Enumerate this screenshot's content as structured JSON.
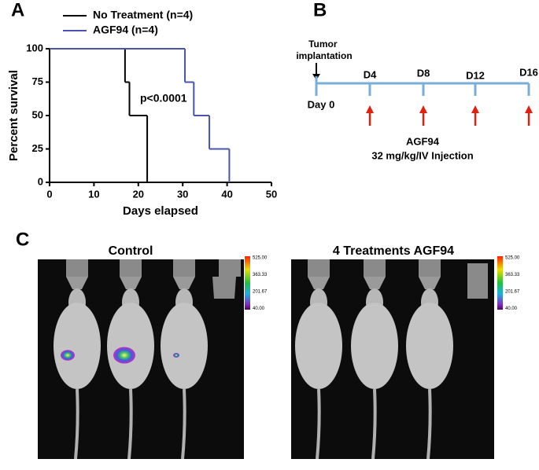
{
  "panels": {
    "a": "A",
    "b": "B",
    "c": "C"
  },
  "chart_data": {
    "type": "step",
    "x_label": "Days elapsed",
    "y_label": "Percent survival",
    "annotation": "p<0.0001",
    "xlim": [
      0,
      50
    ],
    "xticks": [
      0,
      10,
      20,
      30,
      40,
      50
    ],
    "ylim": [
      0,
      100
    ],
    "yticks": [
      0,
      25,
      50,
      75,
      100
    ],
    "grid": false,
    "legend": "top",
    "series": [
      {
        "name": "No Treatment (n=4)",
        "color": "#000000",
        "x": [
          0,
          17,
          18,
          22
        ],
        "values": [
          100,
          75,
          50,
          0
        ]
      },
      {
        "name": "AGF94 (n=4)",
        "color": "#4a54b0",
        "x": [
          0,
          30.5,
          32.5,
          36,
          40.5
        ],
        "values": [
          100,
          75,
          50,
          25,
          0
        ]
      }
    ]
  },
  "timeline": {
    "start_label": "Tumor implantation",
    "day0": "Day 0",
    "days": [
      "D4",
      "D8",
      "D12",
      "D16"
    ],
    "drug": "AGF94",
    "dose": "32 mg/kg/IV Injection"
  },
  "imaging": {
    "left_title": "Control",
    "right_title": "4 Treatments AGF94",
    "colorbar": [
      "525.00",
      "363.33",
      "201.67",
      "40.00"
    ]
  }
}
